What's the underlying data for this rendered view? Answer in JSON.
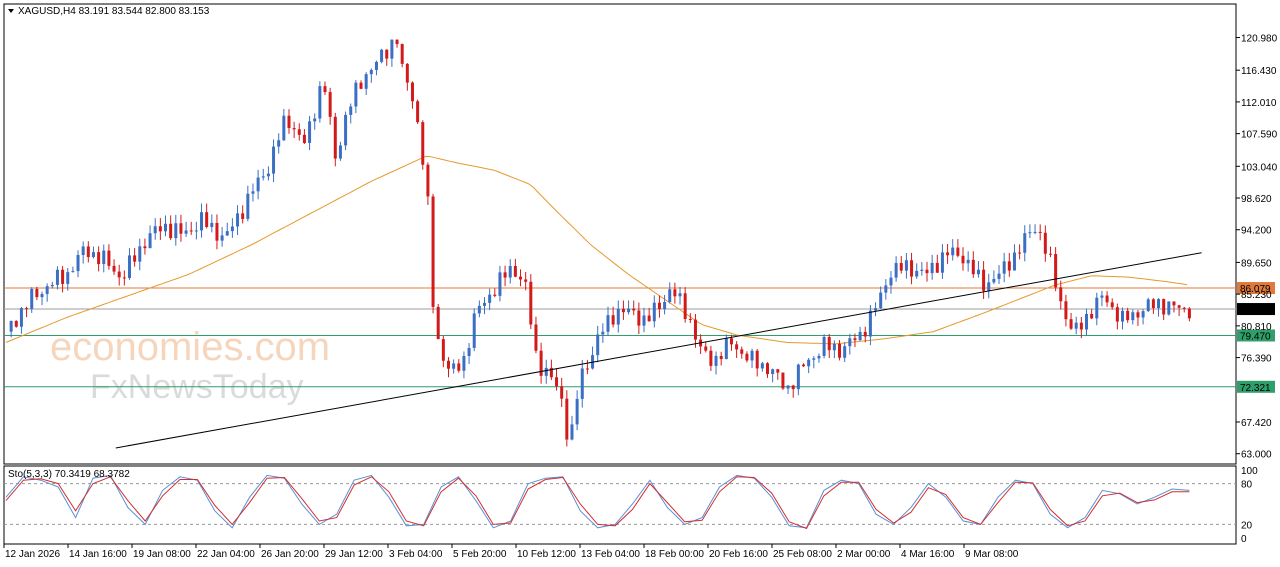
{
  "header": {
    "symbol_info": "XAGUSD,H4  83.191 83.544 82.800 83.153",
    "stoch_info": "Sto(5,3,3) 70.3419 68.3782"
  },
  "watermark": {
    "line1": "economies.com",
    "line2": "FxNewsToday"
  },
  "colors": {
    "bull": "#3a6fc4",
    "bear": "#d31a1a",
    "ma": "#e59a2b",
    "resistance": "#e07a3a",
    "support": "#2e9e6a",
    "trendline": "#000000",
    "price_line": "#9e9e9e",
    "stoch_main": "#5b8fd6",
    "stoch_signal": "#d32f2f"
  },
  "chart_data": [
    {
      "type": "candlestick",
      "title": "XAGUSD,H4",
      "ylim": [
        62.4,
        123.7
      ],
      "price_axis_ticks": [
        "120.980",
        "116.430",
        "112.010",
        "107.590",
        "103.040",
        "98.620",
        "94.200",
        "89.650",
        "85.230",
        "80.810",
        "76.390",
        "67.420",
        "63.000"
      ],
      "time_axis_ticks": [
        "12 Jan 2026",
        "14 Jan 16:00",
        "19 Jan 08:00",
        "22 Jan 04:00",
        "26 Jan 20:00",
        "29 Jan 12:00",
        "3 Feb 04:00",
        "5 Feb 20:00",
        "10 Feb 12:00",
        "13 Feb 04:00",
        "18 Feb 00:00",
        "20 Feb 16:00",
        "25 Feb 08:00",
        "2 Mar 00:00",
        "4 Mar 16:00",
        "9 Mar 08:00"
      ],
      "current_price": 83.153,
      "current_price_label": "83.153",
      "horizontal_levels": [
        {
          "value": 86.079,
          "label": "86.079",
          "role": "resistance"
        },
        {
          "value": 79.47,
          "label": "79.470",
          "role": "support"
        },
        {
          "value": 72.321,
          "label": "72.321",
          "role": "support"
        }
      ],
      "trendline": {
        "from_bar": 0.09,
        "from_value": 63.8,
        "to_bar": 0.98,
        "to_value": 91.0
      },
      "price_path": [
        [
          0.0,
          80.0
        ],
        [
          0.02,
          84.5
        ],
        [
          0.035,
          86.5
        ],
        [
          0.05,
          88.0
        ],
        [
          0.065,
          91.5
        ],
        [
          0.08,
          90.0
        ],
        [
          0.095,
          87.5
        ],
        [
          0.115,
          93.0
        ],
        [
          0.13,
          94.8
        ],
        [
          0.145,
          93.5
        ],
        [
          0.16,
          95.5
        ],
        [
          0.18,
          93.0
        ],
        [
          0.2,
          99.0
        ],
        [
          0.215,
          103.0
        ],
        [
          0.23,
          110.0
        ],
        [
          0.245,
          106.0
        ],
        [
          0.26,
          115.5
        ],
        [
          0.27,
          104.0
        ],
        [
          0.28,
          111.0
        ],
        [
          0.295,
          116.0
        ],
        [
          0.31,
          118.5
        ],
        [
          0.32,
          121.5
        ],
        [
          0.325,
          116.0
        ],
        [
          0.335,
          112.0
        ],
        [
          0.345,
          100.0
        ],
        [
          0.35,
          84.0
        ],
        [
          0.355,
          78.0
        ],
        [
          0.365,
          74.0
        ],
        [
          0.375,
          76.0
        ],
        [
          0.385,
          82.5
        ],
        [
          0.4,
          86.0
        ],
        [
          0.415,
          89.0
        ],
        [
          0.425,
          87.0
        ],
        [
          0.435,
          76.0
        ],
        [
          0.445,
          74.0
        ],
        [
          0.455,
          71.0
        ],
        [
          0.462,
          64.0
        ],
        [
          0.47,
          73.0
        ],
        [
          0.485,
          79.0
        ],
        [
          0.5,
          83.0
        ],
        [
          0.515,
          82.5
        ],
        [
          0.525,
          81.5
        ],
        [
          0.535,
          83.5
        ],
        [
          0.545,
          86.0
        ],
        [
          0.56,
          82.0
        ],
        [
          0.57,
          77.0
        ],
        [
          0.58,
          76.0
        ],
        [
          0.595,
          78.5
        ],
        [
          0.61,
          76.0
        ],
        [
          0.625,
          75.0
        ],
        [
          0.64,
          72.0
        ],
        [
          0.655,
          75.5
        ],
        [
          0.67,
          78.0
        ],
        [
          0.685,
          77.5
        ],
        [
          0.7,
          79.5
        ],
        [
          0.715,
          84.0
        ],
        [
          0.725,
          88.5
        ],
        [
          0.74,
          89.0
        ],
        [
          0.755,
          88.0
        ],
        [
          0.77,
          91.0
        ],
        [
          0.785,
          90.5
        ],
        [
          0.8,
          86.5
        ],
        [
          0.815,
          88.0
        ],
        [
          0.83,
          91.5
        ],
        [
          0.845,
          95.0
        ],
        [
          0.855,
          90.0
        ],
        [
          0.865,
          84.0
        ],
        [
          0.875,
          79.5
        ],
        [
          0.885,
          82.0
        ],
        [
          0.9,
          85.0
        ],
        [
          0.915,
          81.5
        ],
        [
          0.93,
          83.0
        ],
        [
          0.945,
          84.0
        ],
        [
          0.96,
          83.2
        ],
        [
          0.97,
          83.153
        ]
      ],
      "ma_path": [
        [
          0.0,
          78.5
        ],
        [
          0.05,
          82.0
        ],
        [
          0.1,
          85.0
        ],
        [
          0.15,
          88.0
        ],
        [
          0.2,
          92.0
        ],
        [
          0.25,
          96.5
        ],
        [
          0.3,
          101.0
        ],
        [
          0.345,
          104.5
        ],
        [
          0.37,
          103.5
        ],
        [
          0.4,
          102.5
        ],
        [
          0.43,
          100.5
        ],
        [
          0.45,
          97.0
        ],
        [
          0.48,
          92.0
        ],
        [
          0.51,
          88.0
        ],
        [
          0.54,
          84.5
        ],
        [
          0.57,
          81.0
        ],
        [
          0.6,
          79.5
        ],
        [
          0.64,
          78.5
        ],
        [
          0.68,
          78.3
        ],
        [
          0.72,
          79.0
        ],
        [
          0.76,
          80.0
        ],
        [
          0.8,
          82.5
        ],
        [
          0.83,
          84.5
        ],
        [
          0.86,
          86.5
        ],
        [
          0.89,
          87.8
        ],
        [
          0.92,
          87.6
        ],
        [
          0.95,
          87.0
        ],
        [
          0.97,
          86.5
        ]
      ]
    },
    {
      "type": "line",
      "title": "Sto(5,3,3)",
      "ylim": [
        0,
        100
      ],
      "levels": [
        80,
        20
      ],
      "axis_ticks": [
        "100",
        "80",
        "20",
        "0"
      ],
      "series": [
        {
          "name": "70.3419",
          "values": [
            60,
            90,
            85,
            75,
            30,
            88,
            92,
            45,
            20,
            70,
            90,
            85,
            40,
            15,
            60,
            92,
            88,
            50,
            20,
            35,
            85,
            92,
            60,
            18,
            20,
            75,
            90,
            55,
            15,
            25,
            80,
            88,
            90,
            40,
            15,
            20,
            50,
            85,
            45,
            20,
            30,
            75,
            92,
            88,
            60,
            18,
            15,
            70,
            85,
            80,
            35,
            20,
            45,
            80,
            60,
            25,
            20,
            60,
            85,
            80,
            35,
            15,
            30,
            70,
            65,
            50,
            60,
            72,
            70
          ]
        },
        {
          "name": "68.3782",
          "values": [
            55,
            85,
            87,
            80,
            40,
            80,
            90,
            55,
            25,
            62,
            86,
            86,
            48,
            20,
            52,
            88,
            89,
            58,
            25,
            30,
            78,
            90,
            68,
            25,
            18,
            68,
            88,
            62,
            20,
            22,
            72,
            86,
            89,
            50,
            20,
            18,
            42,
            80,
            52,
            24,
            26,
            68,
            90,
            89,
            66,
            24,
            14,
            62,
            82,
            82,
            42,
            22,
            38,
            74,
            64,
            30,
            20,
            52,
            82,
            81,
            42,
            18,
            25,
            62,
            66,
            52,
            56,
            68,
            68
          ]
        }
      ]
    }
  ]
}
